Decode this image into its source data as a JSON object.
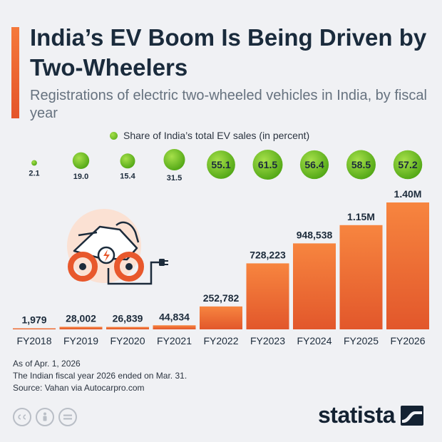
{
  "header": {
    "title": "India’s EV Boom Is Being Driven by Two-Wheelers",
    "subtitle": "Registrations of electric two-wheeled vehicles in India, by fiscal year"
  },
  "legend": {
    "label": "Share of India’s total EV sales (in percent)"
  },
  "colors": {
    "bar_top": "#f7853f",
    "bar_bottom": "#e2572b",
    "bubble_light": "#a6e04a",
    "bubble_dark": "#4fa514",
    "accent": "#f26a33"
  },
  "chart_data": {
    "type": "bar",
    "categories": [
      "FY2018",
      "FY2019",
      "FY2020",
      "FY2021",
      "FY2022",
      "FY2023",
      "FY2024",
      "FY2025",
      "FY2026"
    ],
    "series": [
      {
        "name": "Registrations",
        "values": [
          1979,
          28002,
          26839,
          44834,
          252782,
          728223,
          948538,
          1150000,
          1400000
        ],
        "labels": [
          "1,979",
          "28,002",
          "26,839",
          "44,834",
          "252,782",
          "728,223",
          "948,538",
          "1.15M",
          "1.40M"
        ]
      },
      {
        "name": "Share of India’s total EV sales (in percent)",
        "values": [
          2.1,
          19.0,
          15.4,
          31.5,
          55.1,
          61.5,
          56.4,
          58.5,
          57.2
        ],
        "labels": [
          "2.1",
          "19.0",
          "15.4",
          "31.5",
          "55.1",
          "61.5",
          "56.4",
          "58.5",
          "57.2"
        ]
      }
    ]
  },
  "footnotes": [
    "As of Apr. 1, 2026",
    "The Indian fiscal year 2026 ended on Mar. 31.",
    "Source: Vahan via Autocarpro.com"
  ],
  "license_icons": [
    "cc-icon",
    "person-icon",
    "equals-icon"
  ],
  "brand": {
    "name": "statista"
  }
}
